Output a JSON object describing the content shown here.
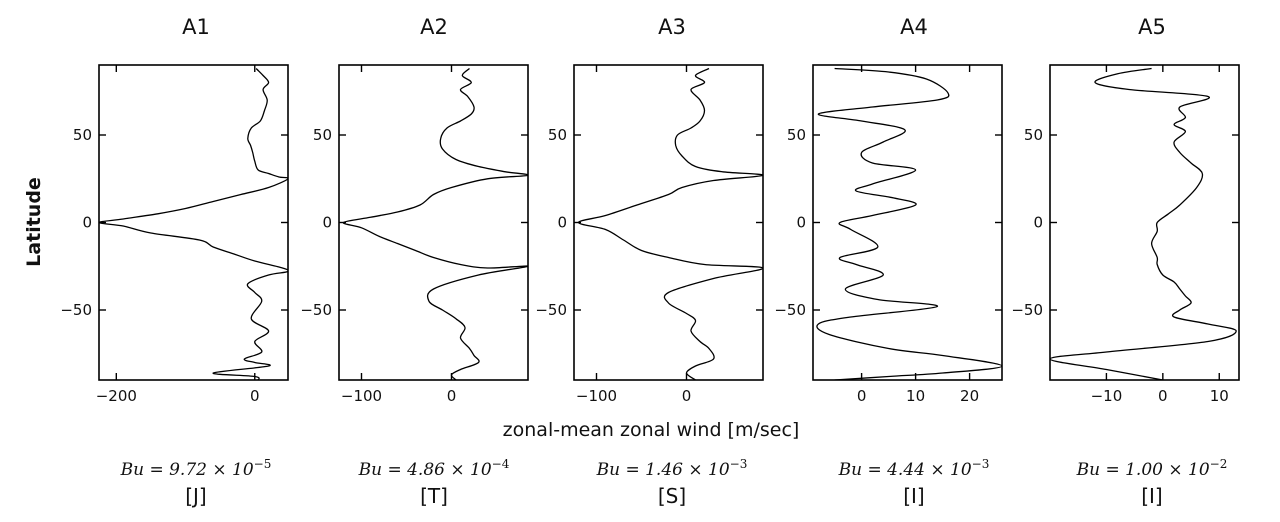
{
  "figure": {
    "ylabel": "Latitude",
    "xlabel": "zonal-mean zonal wind [m/sec]"
  },
  "chart_data": [
    {
      "type": "line",
      "title": "A1",
      "bu_text": "Bu = 9.72 × 10",
      "bu_exp": "−5",
      "category": "[J]",
      "xlim": [
        -225,
        48
      ],
      "ylim": [
        -90,
        90
      ],
      "xticks": [
        -200,
        0
      ],
      "xtick_labels": [
        "−200",
        "0"
      ],
      "yticks": [
        -50,
        0,
        50
      ],
      "ytick_labels": [
        "−50",
        "0",
        "50"
      ],
      "x": [
        2,
        12,
        20,
        12,
        18,
        14,
        8,
        -5,
        -10,
        -6,
        -3,
        0,
        5,
        20,
        35,
        48,
        20,
        -20,
        -60,
        -100,
        -140,
        -190,
        -225,
        -190,
        -150,
        -80,
        -60,
        -30,
        0,
        40,
        48,
        20,
        -10,
        0,
        10,
        -5,
        20,
        0,
        10,
        -15,
        0,
        20,
        -60,
        0,
        5
      ],
      "y": [
        88,
        84,
        80,
        76,
        70,
        64,
        58,
        54,
        48,
        44,
        40,
        35,
        30,
        28,
        26,
        25,
        20,
        16,
        12,
        8,
        5,
        2,
        0,
        -2,
        -6,
        -10,
        -14,
        -18,
        -22,
        -26,
        -28,
        -30,
        -35,
        -40,
        -45,
        -55,
        -62,
        -68,
        -74,
        -78,
        -80,
        -82,
        -86,
        -88,
        -90
      ]
    },
    {
      "type": "line",
      "title": "A2",
      "bu_text": "Bu = 4.86 × 10",
      "bu_exp": "−4",
      "category": "[T]",
      "xlim": [
        -125,
        85
      ],
      "ylim": [
        -90,
        90
      ],
      "xticks": [
        -100,
        0
      ],
      "xtick_labels": [
        "−100",
        "0"
      ],
      "yticks": [
        -50,
        0,
        50
      ],
      "ytick_labels": [
        "−50",
        "0",
        "50"
      ],
      "x": [
        20,
        12,
        22,
        10,
        18,
        25,
        22,
        10,
        -5,
        -12,
        -10,
        5,
        30,
        60,
        85,
        40,
        0,
        -20,
        -35,
        -60,
        -90,
        -120,
        -100,
        -80,
        -60,
        -40,
        -20,
        10,
        40,
        85,
        30,
        -20,
        -25,
        -10,
        5,
        15,
        10,
        20,
        25,
        30,
        10,
        0,
        5
      ],
      "y": [
        88,
        84,
        80,
        76,
        72,
        66,
        62,
        58,
        54,
        48,
        42,
        36,
        32,
        29,
        27,
        25,
        20,
        16,
        10,
        6,
        3,
        0,
        -3,
        -8,
        -12,
        -16,
        -20,
        -24,
        -26,
        -25,
        -30,
        -38,
        -45,
        -50,
        -55,
        -60,
        -66,
        -72,
        -76,
        -80,
        -84,
        -87,
        -90
      ]
    },
    {
      "type": "line",
      "title": "A3",
      "bu_text": "Bu = 1.46 × 10",
      "bu_exp": "−3",
      "category": "[S]",
      "xlim": [
        -125,
        85
      ],
      "ylim": [
        -90,
        90
      ],
      "xticks": [
        -100,
        0
      ],
      "xtick_labels": [
        "−100",
        "0"
      ],
      "yticks": [
        -50,
        0,
        50
      ],
      "ytick_labels": [
        "−50",
        "0",
        "50"
      ],
      "x": [
        25,
        10,
        20,
        5,
        15,
        20,
        15,
        5,
        -10,
        -12,
        -5,
        10,
        40,
        85,
        30,
        -5,
        -20,
        -55,
        -90,
        -120,
        -90,
        -70,
        -50,
        -20,
        20,
        85,
        30,
        -20,
        -20,
        0,
        10,
        5,
        15,
        25,
        30,
        10,
        0,
        10
      ],
      "y": [
        88,
        84,
        80,
        76,
        70,
        64,
        58,
        54,
        50,
        44,
        38,
        32,
        29,
        27,
        24,
        20,
        16,
        10,
        4,
        0,
        -4,
        -10,
        -16,
        -20,
        -24,
        -26,
        -32,
        -40,
        -46,
        -52,
        -56,
        -62,
        -68,
        -72,
        -78,
        -82,
        -86,
        -90
      ]
    },
    {
      "type": "line",
      "title": "A4",
      "bu_text": "Bu = 4.44 × 10",
      "bu_exp": "−3",
      "category": "[I]",
      "xlim": [
        -9,
        26
      ],
      "ylim": [
        -90,
        90
      ],
      "xticks": [
        0,
        10,
        20
      ],
      "xtick_labels": [
        "0",
        "10",
        "20"
      ],
      "yticks": [
        -50,
        0,
        50
      ],
      "ytick_labels": [
        "−50",
        "0",
        "50"
      ],
      "x": [
        -5,
        5,
        12,
        16,
        14,
        2,
        -8,
        0,
        8,
        4,
        0,
        2,
        10,
        2,
        -1,
        6,
        10,
        2,
        -4,
        -2,
        3,
        -4,
        -1,
        4,
        -3,
        3,
        14,
        -2,
        -8,
        -6,
        5,
        15,
        26,
        15,
        5,
        -5
      ],
      "y": [
        88,
        86,
        82,
        74,
        70,
        66,
        62,
        58,
        53,
        46,
        40,
        34,
        30,
        22,
        18,
        14,
        10,
        4,
        0,
        -4,
        -14,
        -20,
        -24,
        -30,
        -38,
        -44,
        -48,
        -54,
        -58,
        -64,
        -72,
        -76,
        -82,
        -86,
        -88,
        -90
      ]
    },
    {
      "type": "line",
      "title": "A5",
      "bu_text": "Bu = 1.00 × 10",
      "bu_exp": "−2",
      "category": "[I]",
      "xlim": [
        -20,
        13.5
      ],
      "ylim": [
        -90,
        90
      ],
      "xticks": [
        -10,
        0,
        10
      ],
      "xtick_labels": [
        "−10",
        "0",
        "10"
      ],
      "x": [
        -2,
        -8,
        -12,
        -6,
        8,
        3,
        4,
        2,
        4,
        2,
        3,
        5,
        7,
        6,
        3,
        1,
        -1,
        -1,
        -2,
        -1,
        -1,
        0,
        2,
        3,
        4,
        5,
        3,
        2,
        8,
        13,
        8,
        -10,
        -20,
        -10,
        0
      ],
      "y": [
        88,
        85,
        80,
        76,
        72,
        66,
        60,
        56,
        52,
        46,
        40,
        34,
        28,
        20,
        10,
        5,
        0,
        -5,
        -12,
        -20,
        -24,
        -30,
        -34,
        -38,
        -42,
        -46,
        -50,
        -54,
        -58,
        -62,
        -68,
        -74,
        -78,
        -84,
        -90
      ],
      "yticks": [
        -50,
        0,
        50
      ],
      "ytick_labels": [
        "−50",
        "0",
        "50"
      ]
    }
  ]
}
